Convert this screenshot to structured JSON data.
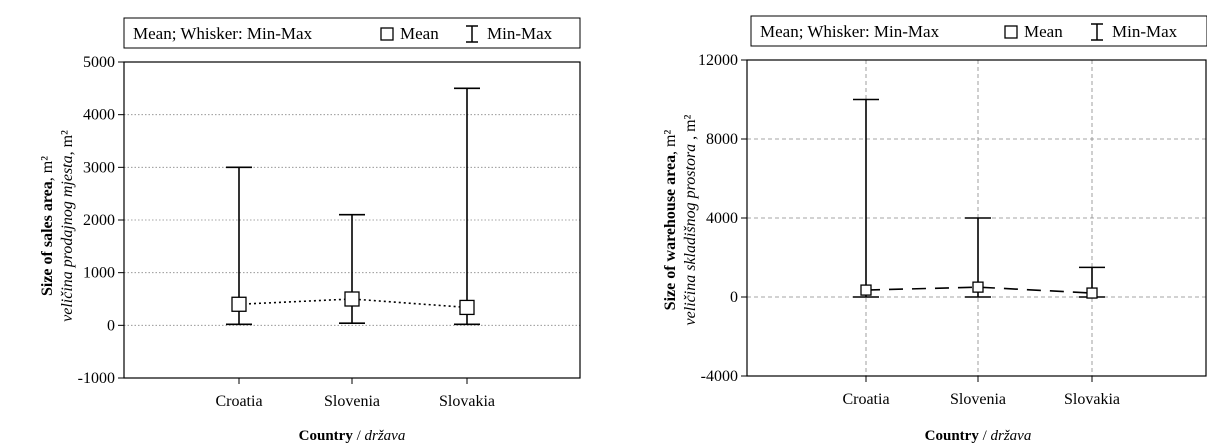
{
  "chart_data": [
    {
      "type": "errorbar",
      "legend": {
        "title": "Mean; Whisker: Min-Max",
        "mean_label": "Mean",
        "minmax_label": "Min-Max"
      },
      "categories": [
        "Croatia",
        "Slovenia",
        "Slovakia"
      ],
      "mean": [
        400,
        500,
        340
      ],
      "min": [
        20,
        40,
        20
      ],
      "max": [
        3000,
        2100,
        4500
      ],
      "ylim": [
        -1000,
        5000
      ],
      "yticks": [
        "5000",
        "4000",
        "3000",
        "2000",
        "1000",
        "0",
        "-1000"
      ],
      "ylabel": {
        "bold": "Size of sales area",
        "unit": ", m²",
        "italic": "veličina prodajnog mjesta",
        "italic_unit": ", m²"
      },
      "xlabel": {
        "bold": "Country",
        "sep": " / ",
        "italic": "država"
      },
      "grid": "horizontal dotted",
      "mean_line": "dotted",
      "legend_position": "top"
    },
    {
      "type": "errorbar",
      "legend": {
        "title": "Mean; Whisker: Min-Max",
        "mean_label": "Mean",
        "minmax_label": "Min-Max"
      },
      "categories": [
        "Croatia",
        "Slovenia",
        "Slovakia"
      ],
      "mean": [
        350,
        500,
        200
      ],
      "min": [
        0,
        0,
        0
      ],
      "max": [
        10000,
        4000,
        1500
      ],
      "ylim": [
        -4000,
        12000
      ],
      "yticks": [
        "12000",
        "8000",
        "4000",
        "0",
        "-4000"
      ],
      "ylabel": {
        "bold": "Size of warehouse area",
        "unit": ", m²",
        "italic": "veličina skladišnog prostora",
        "italic_unit": " , m²"
      },
      "xlabel": {
        "bold": "Country",
        "sep": " / ",
        "italic": "država"
      },
      "grid": "dashed both",
      "mean_line": "dashed",
      "legend_position": "top"
    }
  ]
}
